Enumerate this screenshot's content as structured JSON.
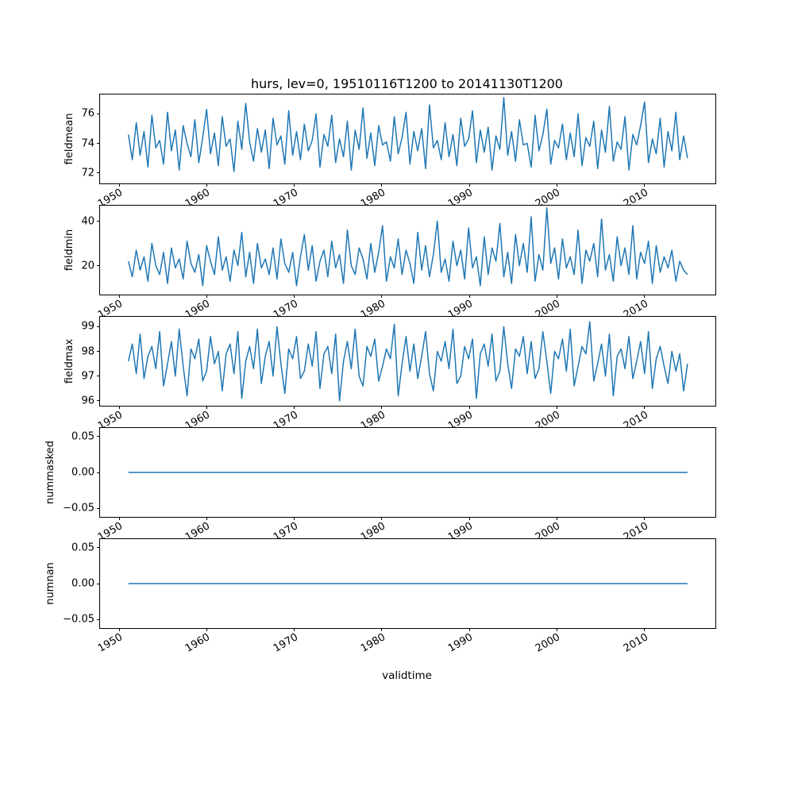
{
  "title": "hurs, lev=0, 19510116T1200 to 20141130T1200",
  "xlabel": "validtime",
  "line_color": "#1f77b4",
  "chart_data": {
    "type": "line",
    "title": "hurs, lev=0, 19510116T1200 to 20141130T1200",
    "xlabel": "validtime",
    "legend": "none",
    "grid": false,
    "x_axis": {
      "xlim": [
        1947.8,
        2018.1
      ],
      "x_start": 1951.04,
      "x_end": 2014.92,
      "xticks": [
        {
          "v": 1950,
          "label": "1950"
        },
        {
          "v": 1960,
          "label": "1960"
        },
        {
          "v": 1970,
          "label": "1970"
        },
        {
          "v": 1980,
          "label": "1980"
        },
        {
          "v": 1990,
          "label": "1990"
        },
        {
          "v": 2000,
          "label": "2000"
        },
        {
          "v": 2010,
          "label": "2010"
        }
      ]
    },
    "subplots": [
      {
        "name": "fieldmean",
        "ylabel": "fieldmean",
        "ylim": [
          71.3,
          77.3
        ],
        "yticks": [
          {
            "v": 72,
            "label": "72"
          },
          {
            "v": 74,
            "label": "74"
          },
          {
            "v": 76,
            "label": "76"
          }
        ],
        "values": [
          74.6,
          72.9,
          75.4,
          73.2,
          74.8,
          72.4,
          75.9,
          73.7,
          74.2,
          72.6,
          76.1,
          73.5,
          74.9,
          72.2,
          75.2,
          74.0,
          73.1,
          75.6,
          72.7,
          74.4,
          76.3,
          73.3,
          74.7,
          72.5,
          75.8,
          73.8,
          74.3,
          72.1,
          75.5,
          73.6,
          76.7,
          74.1,
          72.8,
          75.0,
          73.4,
          74.9,
          72.3,
          75.7,
          73.9,
          74.5,
          72.6,
          76.2,
          73.2,
          74.8,
          72.9,
          75.3,
          73.5,
          74.2,
          76.0,
          72.4,
          74.6,
          73.8,
          75.9,
          72.7,
          74.3,
          73.1,
          75.5,
          72.2,
          74.9,
          73.6,
          76.4,
          73.0,
          74.7,
          72.5,
          75.2,
          73.9,
          74.1,
          72.8,
          75.8,
          73.3,
          74.4,
          76.1,
          72.6,
          74.8,
          73.5,
          75.0,
          72.3,
          76.6,
          73.7,
          74.2,
          72.9,
          75.4,
          73.1,
          74.6,
          72.5,
          75.7,
          73.8,
          74.3,
          76.2,
          72.7,
          74.9,
          73.4,
          75.1,
          72.2,
          74.5,
          73.6,
          77.1,
          73.2,
          74.8,
          72.8,
          75.6,
          73.9,
          74.0,
          72.4,
          75.9,
          73.5,
          74.6,
          76.3,
          72.6,
          74.2,
          73.7,
          75.3,
          72.9,
          74.7,
          73.1,
          76.0,
          72.5,
          74.4,
          73.8,
          75.5,
          72.3,
          74.9,
          73.4,
          76.5,
          72.8,
          74.1,
          73.6,
          75.8,
          72.2,
          74.6,
          73.9,
          75.2,
          76.8,
          72.7,
          74.3,
          73.3,
          75.7,
          72.4,
          74.8,
          73.5,
          76.1,
          72.9,
          74.5,
          73.0
        ]
      },
      {
        "name": "fieldmin",
        "ylabel": "fieldmin",
        "ylim": [
          7,
          47
        ],
        "yticks": [
          {
            "v": 20,
            "label": "20"
          },
          {
            "v": 40,
            "label": "40"
          }
        ],
        "values": [
          22,
          15,
          27,
          18,
          24,
          13,
          30,
          20,
          16,
          26,
          12,
          28,
          19,
          23,
          14,
          31,
          21,
          17,
          25,
          11,
          29,
          22,
          16,
          33,
          18,
          24,
          13,
          27,
          20,
          35,
          15,
          26,
          12,
          30,
          19,
          23,
          16,
          28,
          14,
          32,
          21,
          17,
          26,
          11,
          24,
          34,
          18,
          29,
          13,
          22,
          27,
          15,
          31,
          19,
          25,
          12,
          36,
          20,
          16,
          28,
          23,
          14,
          30,
          17,
          26,
          38,
          13,
          24,
          19,
          32,
          16,
          27,
          21,
          12,
          35,
          18,
          29,
          15,
          25,
          40,
          17,
          23,
          13,
          31,
          20,
          27,
          14,
          37,
          19,
          24,
          11,
          33,
          16,
          28,
          22,
          39,
          15,
          26,
          12,
          34,
          20,
          30,
          17,
          42,
          13,
          25,
          18,
          46,
          21,
          28,
          14,
          32,
          19,
          24,
          16,
          36,
          12,
          27,
          22,
          30,
          15,
          41,
          18,
          25,
          13,
          33,
          20,
          28,
          16,
          38,
          14,
          26,
          21,
          31,
          12,
          29,
          17,
          24,
          19,
          27,
          13,
          22,
          18,
          16
        ]
      },
      {
        "name": "fieldmax",
        "ylabel": "fieldmax",
        "ylim": [
          95.8,
          99.4
        ],
        "yticks": [
          {
            "v": 96,
            "label": "96"
          },
          {
            "v": 97,
            "label": "97"
          },
          {
            "v": 98,
            "label": "98"
          },
          {
            "v": 99,
            "label": "99"
          }
        ],
        "values": [
          97.6,
          98.3,
          97.1,
          98.7,
          96.9,
          97.8,
          98.2,
          97.3,
          98.8,
          96.6,
          97.5,
          98.4,
          97.0,
          98.9,
          97.4,
          96.2,
          98.1,
          97.7,
          98.5,
          96.8,
          97.2,
          98.6,
          97.5,
          98.0,
          96.4,
          97.9,
          98.3,
          97.1,
          98.8,
          96.1,
          97.6,
          98.2,
          97.3,
          98.9,
          96.7,
          97.8,
          98.4,
          97.0,
          99.0,
          97.5,
          96.3,
          98.1,
          97.7,
          98.6,
          96.9,
          97.2,
          98.3,
          97.4,
          98.8,
          96.5,
          97.9,
          98.2,
          97.1,
          98.7,
          96.0,
          97.6,
          98.4,
          97.3,
          98.9,
          97.0,
          96.6,
          98.2,
          97.8,
          98.5,
          96.8,
          97.4,
          98.1,
          97.7,
          99.1,
          96.2,
          97.5,
          98.6,
          97.2,
          98.3,
          96.9,
          97.8,
          98.8,
          97.1,
          96.4,
          98.0,
          97.6,
          98.4,
          97.3,
          98.9,
          96.7,
          97.0,
          98.2,
          97.7,
          98.5,
          96.1,
          97.9,
          98.3,
          97.4,
          98.7,
          96.8,
          97.2,
          99.0,
          97.5,
          96.5,
          98.1,
          97.8,
          98.6,
          97.1,
          98.4,
          96.9,
          97.3,
          98.8,
          97.6,
          96.3,
          98.0,
          97.7,
          98.5,
          97.2,
          98.9,
          96.6,
          97.4,
          98.2,
          97.9,
          99.2,
          96.8,
          97.5,
          98.3,
          97.0,
          98.7,
          96.2,
          97.8,
          98.1,
          97.3,
          98.6,
          96.9,
          97.6,
          98.4,
          97.1,
          98.8,
          96.5,
          97.7,
          98.2,
          97.4,
          96.7,
          98.0,
          97.2,
          97.9,
          96.4,
          97.5
        ]
      },
      {
        "name": "nummasked",
        "ylabel": "nummasked",
        "ylim": [
          -0.062,
          0.062
        ],
        "yticks": [
          {
            "v": -0.05,
            "label": "−0.05"
          },
          {
            "v": 0.0,
            "label": "0.00"
          },
          {
            "v": 0.05,
            "label": "0.05"
          }
        ],
        "values": [
          0.0,
          0.0
        ]
      },
      {
        "name": "numnan",
        "ylabel": "numnan",
        "ylim": [
          -0.062,
          0.062
        ],
        "yticks": [
          {
            "v": -0.05,
            "label": "−0.05"
          },
          {
            "v": 0.0,
            "label": "0.00"
          },
          {
            "v": 0.05,
            "label": "0.05"
          }
        ],
        "values": [
          0.0,
          0.0
        ]
      }
    ]
  }
}
